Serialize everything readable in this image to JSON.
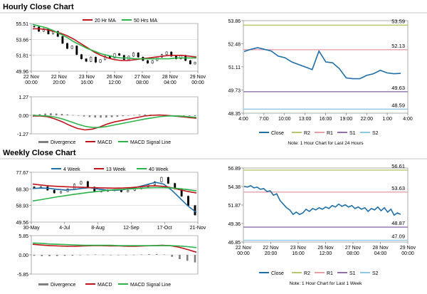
{
  "sections": {
    "hourly_title": "Hourly Close Chart",
    "weekly_title": "Weekly Close Chart"
  },
  "colors": {
    "close": "#1f6fa8",
    "ma20": "#c0141c",
    "ma50": "#2db34a",
    "r2": "#b7c76b",
    "r1": "#e8a0a8",
    "s1": "#8e6fa8",
    "s2": "#8fc8e6",
    "divergence": "#7f7f7f",
    "candle": "#000000",
    "grid": "#c8c8c8"
  },
  "chart_data": [
    {
      "id": "hourly_price",
      "type": "line",
      "yticks": [
        "55.51",
        "53.66",
        "51.81",
        "49.96"
      ],
      "ylim": [
        49.96,
        55.51
      ],
      "xticks": [
        [
          "22 Nov",
          "00:00"
        ],
        [
          "22 Nov",
          "20:00"
        ],
        [
          "23 Nov",
          "16:00"
        ],
        [
          "26 Nov",
          "12:00"
        ],
        [
          "27 Nov",
          "08:00"
        ],
        [
          "28 Nov",
          "04:00"
        ],
        [
          "29 Nov",
          "00:00"
        ]
      ],
      "series": [
        {
          "name": "20 Hr MA",
          "values": [
            54.9,
            54.9,
            54.8,
            54.6,
            54.4,
            54.1,
            53.7,
            53.2,
            52.7,
            52.2,
            51.8,
            51.5,
            51.3,
            51.2,
            51.2,
            51.3,
            51.4,
            51.5,
            51.6,
            51.7,
            51.8,
            51.8,
            51.8,
            51.7,
            51.6
          ]
        },
        {
          "name": "50 Hrs MA",
          "values": [
            55.4,
            55.2,
            55.0,
            54.7,
            54.3,
            53.9,
            53.4,
            53.0,
            52.6,
            52.3,
            52.0,
            51.8,
            51.6,
            51.5,
            51.5,
            51.4,
            51.4,
            51.4,
            51.4,
            51.4,
            51.4,
            51.5,
            51.5,
            51.5,
            51.5
          ]
        }
      ],
      "candles": [
        55.1,
        54.6,
        54.9,
        54.3,
        54.6,
        54.0,
        53.2,
        52.6,
        52.9,
        51.9,
        51.4,
        51.1,
        51.6,
        51.0,
        51.3,
        51.7,
        51.5,
        52.0,
        51.8,
        51.3,
        51.7,
        52.1,
        51.6,
        51.2,
        50.9,
        51.2,
        51.6,
        51.9,
        52.2,
        51.7,
        51.4,
        51.8,
        51.2,
        50.8,
        51.0
      ]
    },
    {
      "id": "hourly_macd",
      "type": "bar",
      "yticks": [
        "1.27",
        "0.00",
        "-1.27"
      ],
      "ylim": [
        -1.27,
        1.27
      ],
      "series": [
        {
          "name": "Divergence",
          "values": [
            0.05,
            0.08,
            0.12,
            0.14,
            0.12,
            0.1,
            0.06,
            0.02,
            -0.03,
            -0.08,
            -0.12,
            -0.15,
            -0.16,
            -0.15,
            -0.13,
            -0.1,
            -0.06,
            -0.02,
            0.02,
            0.05,
            0.06,
            0.05,
            0.04,
            0.02,
            0.01,
            -0.01,
            -0.02,
            -0.03,
            -0.04,
            -0.05
          ]
        },
        {
          "name": "MACD",
          "values": [
            -0.05,
            -0.05,
            -0.1,
            -0.25,
            -0.45,
            -0.7,
            -0.9,
            -1.0,
            -0.95,
            -0.8,
            -0.6,
            -0.45,
            -0.35,
            -0.25,
            -0.15,
            -0.05,
            0.0,
            0.02,
            0.0,
            -0.05,
            -0.1,
            -0.15,
            -0.2
          ]
        },
        {
          "name": "MACD Signal Line",
          "values": [
            0.0,
            -0.02,
            -0.05,
            -0.12,
            -0.25,
            -0.42,
            -0.6,
            -0.75,
            -0.83,
            -0.83,
            -0.76,
            -0.66,
            -0.56,
            -0.46,
            -0.36,
            -0.26,
            -0.18,
            -0.1,
            -0.05,
            -0.04,
            -0.06,
            -0.1,
            -0.14
          ]
        }
      ]
    },
    {
      "id": "hourly_close",
      "type": "line",
      "yticks": [
        "53.86",
        "52.48",
        "51.11",
        "49.73",
        "48.35"
      ],
      "ylim": [
        48.35,
        53.86
      ],
      "xticks": [
        "4:00",
        "7:00",
        "10:00",
        "13:00",
        "16:00",
        "19:00",
        "22:00",
        "1:00",
        "4:00"
      ],
      "levels": [
        {
          "name": "R2",
          "value": 53.59,
          "label": "53.59"
        },
        {
          "name": "R1",
          "value": 52.13,
          "label": "52.13"
        },
        {
          "name": "S1",
          "value": 49.63,
          "label": "49.63"
        },
        {
          "name": "S2",
          "value": 48.59,
          "label": "48.59"
        }
      ],
      "series": [
        {
          "name": "Close",
          "values": [
            52.02,
            52.15,
            52.25,
            52.15,
            52.05,
            51.75,
            51.65,
            51.4,
            51.25,
            51.1,
            50.95,
            52.05,
            51.4,
            51.35,
            51.0,
            50.45,
            50.4,
            50.4,
            50.6,
            50.7,
            50.9,
            50.75,
            50.7,
            50.72
          ]
        }
      ],
      "legend": [
        "Close",
        "R2",
        "R1",
        "S1",
        "S2"
      ],
      "note": "Note: 1 Hour Chart for Last 24 Hours"
    },
    {
      "id": "weekly_price",
      "type": "line",
      "yticks": [
        "77.67",
        "68.30",
        "58.93",
        "49.56"
      ],
      "ylim": [
        49.56,
        77.67
      ],
      "xticks": [
        "30-May",
        "4-Jul",
        "8-Aug",
        "12-Sep",
        "17-Oct",
        "21-Nov"
      ],
      "series": [
        {
          "name": "4 Week",
          "values": [
            68.5,
            68.8,
            68.6,
            68.0,
            67.6,
            67.9,
            68.6,
            69.0,
            68.2,
            67.6,
            67.5,
            67.8,
            68.6,
            69.6,
            70.8,
            72.0,
            71.0,
            67.5,
            63.0,
            58.5,
            55.0
          ]
        },
        {
          "name": "13 Week",
          "values": [
            71.0,
            70.5,
            70.0,
            69.7,
            69.5,
            69.3,
            69.2,
            69.0,
            68.9,
            68.8,
            68.7,
            68.8,
            69.0,
            69.4,
            69.9,
            70.0,
            69.7,
            68.9,
            67.8,
            66.8,
            66.0
          ]
        },
        {
          "name": "40 Week",
          "values": [
            61.5,
            62.2,
            63.0,
            63.8,
            64.5,
            65.2,
            65.8,
            66.4,
            66.9,
            67.4,
            67.8,
            68.0,
            68.3,
            68.6,
            68.9,
            69.0,
            69.0,
            68.8,
            68.4,
            67.8,
            67.2
          ]
        }
      ],
      "candles": [
        69.0,
        69.5,
        67.6,
        66.0,
        66.8,
        68.2,
        71.0,
        72.5,
        69.3,
        66.7,
        67.0,
        67.7,
        67.3,
        66.7,
        67.4,
        68.4,
        69.4,
        70.6,
        72.3,
        74.8,
        71.4,
        68.3,
        64.2,
        58.9,
        53.6
      ]
    },
    {
      "id": "weekly_macd",
      "type": "bar",
      "yticks": [
        "5.85",
        "0.00",
        "-5.85"
      ],
      "ylim": [
        -5.85,
        5.85
      ],
      "series": [
        {
          "name": "Divergence",
          "values": [
            -0.3,
            -0.4,
            -0.4,
            -0.35,
            -0.3,
            -0.25,
            -0.1,
            0.05,
            0.1,
            0.05,
            -0.05,
            -0.1,
            -0.05,
            0.05,
            0.1,
            0.2,
            0.25,
            0.1,
            -0.6,
            -1.3,
            -1.8,
            -2.3
          ]
        },
        {
          "name": "MACD",
          "values": [
            3.2,
            3.0,
            2.8,
            2.7,
            2.6,
            2.6,
            2.7,
            2.8,
            2.8,
            2.7,
            2.7,
            2.6,
            2.6,
            2.7,
            2.8,
            2.9,
            2.8,
            2.3,
            1.6,
            0.8
          ]
        },
        {
          "name": "MACD Signal Line",
          "values": [
            3.6,
            3.5,
            3.3,
            3.2,
            3.1,
            3.0,
            2.9,
            2.9,
            2.9,
            2.9,
            2.8,
            2.8,
            2.8,
            2.8,
            2.8,
            2.8,
            2.8,
            2.7,
            2.5,
            2.2
          ]
        }
      ]
    },
    {
      "id": "weekly_close",
      "type": "line",
      "yticks": [
        "56.89",
        "54.38",
        "51.87",
        "49.36",
        "46.85"
      ],
      "ylim": [
        46.85,
        56.89
      ],
      "xticks": [
        [
          "22 Nov",
          "00:00"
        ],
        [
          "22 Nov",
          "20:00"
        ],
        [
          "23 Nov",
          "16:00"
        ],
        [
          "26 Nov",
          "12:00"
        ],
        [
          "27 Nov",
          "08:00"
        ],
        [
          "28 Nov",
          "04:00"
        ],
        [
          "29 Nov",
          "00:00"
        ]
      ],
      "levels": [
        {
          "name": "R2",
          "value": 56.61,
          "label": "56.61"
        },
        {
          "name": "R1",
          "value": 53.63,
          "label": "53.63"
        },
        {
          "name": "S1",
          "value": 48.87,
          "label": "48.87"
        },
        {
          "name": "S2",
          "value": 47.09,
          "label": "47.09"
        }
      ],
      "series": [
        {
          "name": "Close",
          "values": [
            54.4,
            54.3,
            54.5,
            54.2,
            54.3,
            54.0,
            54.1,
            53.7,
            53.8,
            53.2,
            53.4,
            52.5,
            52.0,
            51.5,
            51.2,
            50.6,
            50.9,
            50.6,
            50.8,
            51.3,
            51.0,
            51.4,
            51.2,
            51.5,
            51.3,
            51.6,
            51.4,
            51.8,
            51.6,
            52.0,
            51.7,
            51.9,
            51.6,
            51.8,
            51.4,
            51.6,
            51.3,
            51.5,
            51.0,
            51.4,
            51.2,
            51.6,
            51.1,
            51.5,
            50.9,
            51.3,
            50.5,
            50.8,
            50.6
          ]
        }
      ],
      "legend": [
        "Close",
        "R2",
        "R1",
        "S1",
        "S2"
      ],
      "note": "Note: 1 Hour Chart for Last 1 Week"
    }
  ]
}
